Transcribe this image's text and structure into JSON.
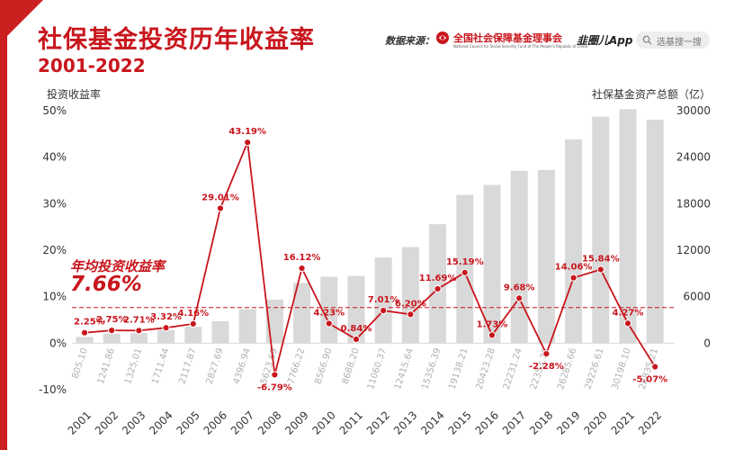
{
  "header": {
    "title": "社保基金投资历年收益率",
    "subtitle": "2001-2022",
    "source_label": "数据来源：",
    "source_org": "全国社会保障基金理事会",
    "source_org_en": "National Council for Social Security Fund of The People's Republic of China",
    "app_name": "韭圈儿App",
    "search_placeholder": "选基搜一搜"
  },
  "average": {
    "label": "年均投资收益率",
    "value": "7.66%",
    "numeric": 7.66
  },
  "colors": {
    "accent": "#c8161d",
    "bar": "#d9d9d9",
    "bar_label": "#b0b0b0",
    "line": "#c8161d"
  },
  "chart_data": {
    "type": "line",
    "title": "社保基金投资历年收益率",
    "subtitle": "2001-2022",
    "xlabel": "",
    "ylabel": "投资收益率",
    "y2label": "社保基金资产总额（亿）",
    "categories": [
      "2001",
      "2002",
      "2003",
      "2004",
      "2005",
      "2006",
      "2007",
      "2008",
      "2009",
      "2010",
      "2011",
      "2012",
      "2013",
      "2014",
      "2015",
      "2016",
      "2017",
      "2018",
      "2019",
      "2020",
      "2021",
      "2022"
    ],
    "ylim": [
      -10,
      50
    ],
    "yticks": [
      "50%",
      "40%",
      "30%",
      "20%",
      "10%",
      "0%",
      "-10%"
    ],
    "y2lim": [
      -6000,
      30000
    ],
    "y2ticks": [
      "30000",
      "24000",
      "18000",
      "12000",
      "6000",
      "0"
    ],
    "grid": false,
    "series": [
      {
        "type": "bar",
        "axis": "right",
        "values": [
          805.1,
          1241.86,
          1325.01,
          1711.44,
          2117.87,
          2827.69,
          4396.94,
          5623.69,
          7766.22,
          8566.9,
          8688.2,
          11060.37,
          12415.64,
          15356.39,
          19138.21,
          20423.28,
          22231.24,
          22353.78,
          26285.66,
          29226.61,
          30198.1,
          28835.21
        ],
        "labels": [
          "805.10",
          "1241.86",
          "1325.01",
          "1711.44",
          "2117.87",
          "2827.69",
          "4396.94",
          "5623.69",
          "7766.22",
          "8566.90",
          "8688.20",
          "11060.37",
          "12415.64",
          "15356.39",
          "19138.21",
          "20423.28",
          "22231.24",
          "22353.78",
          "26285.66",
          "29226.61",
          "30198.10",
          "28835.21"
        ]
      },
      {
        "type": "line",
        "axis": "left",
        "values": [
          2.25,
          2.75,
          2.71,
          3.32,
          4.16,
          29.01,
          43.19,
          -6.79,
          16.12,
          4.23,
          0.84,
          7.01,
          6.2,
          11.69,
          15.19,
          1.73,
          9.68,
          -2.28,
          14.06,
          15.84,
          4.27,
          -5.07
        ],
        "labels": [
          "2.25%",
          "2.75%",
          "2.71%",
          "3.32%",
          "4.16%",
          "29.01%",
          "43.19%",
          "-6.79%",
          "16.12%",
          "4.23%",
          "0.84%",
          "7.01%",
          "6.20%",
          "11.69%",
          "15.19%",
          "1.73%",
          "9.68%",
          "-2.28%",
          "14.06%",
          "15.84%",
          "4.27%",
          "-5.07%"
        ]
      }
    ],
    "reference_line": {
      "value": 7.66,
      "style": "dashed"
    }
  }
}
